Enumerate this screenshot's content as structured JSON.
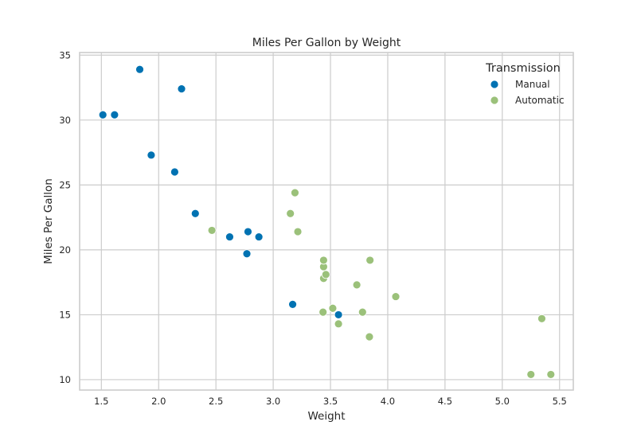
{
  "chart_data": {
    "type": "scatter",
    "title": "Miles Per Gallon by Weight",
    "xlabel": "Weight",
    "ylabel": "Miles Per Gallon",
    "xlim": [
      1.31,
      5.62
    ],
    "ylim": [
      9.2,
      35.2
    ],
    "xticks": [
      "1.5",
      "2.0",
      "2.5",
      "3.0",
      "3.5",
      "4.0",
      "4.5",
      "5.0",
      "5.5"
    ],
    "yticks": [
      "10",
      "15",
      "20",
      "25",
      "30",
      "35"
    ],
    "grid": true,
    "legend": {
      "title": "Transmission",
      "placement": "top-right"
    },
    "series": [
      {
        "name": "Manual",
        "color": "#0072B2",
        "points": [
          [
            1.513,
            30.4
          ],
          [
            1.615,
            30.4
          ],
          [
            1.835,
            33.9
          ],
          [
            1.935,
            27.3
          ],
          [
            2.14,
            26.0
          ],
          [
            2.2,
            32.4
          ],
          [
            2.32,
            22.8
          ],
          [
            2.62,
            21.0
          ],
          [
            2.77,
            19.7
          ],
          [
            2.78,
            21.4
          ],
          [
            2.875,
            21.0
          ],
          [
            3.17,
            15.8
          ],
          [
            3.57,
            15.0
          ]
        ]
      },
      {
        "name": "Automatic",
        "color": "#9BC17A",
        "points": [
          [
            2.465,
            21.5
          ],
          [
            3.15,
            22.8
          ],
          [
            3.19,
            24.4
          ],
          [
            3.215,
            21.4
          ],
          [
            3.435,
            15.2
          ],
          [
            3.44,
            18.7
          ],
          [
            3.44,
            19.2
          ],
          [
            3.44,
            17.8
          ],
          [
            3.46,
            18.1
          ],
          [
            3.52,
            15.5
          ],
          [
            3.57,
            14.3
          ],
          [
            3.73,
            17.3
          ],
          [
            3.78,
            15.2
          ],
          [
            3.84,
            13.3
          ],
          [
            3.845,
            19.2
          ],
          [
            4.07,
            16.4
          ],
          [
            5.25,
            10.4
          ],
          [
            5.345,
            14.7
          ],
          [
            5.424,
            10.4
          ]
        ]
      }
    ]
  }
}
